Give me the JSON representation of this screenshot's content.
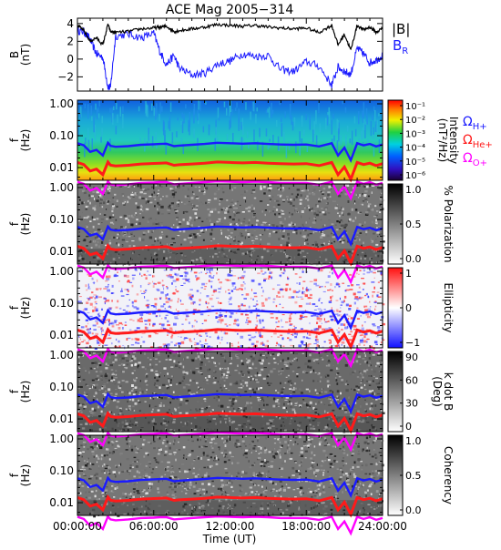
{
  "title": "ACE Mag 2005−314",
  "x_axis": {
    "label": "Time (UT)",
    "ticks": [
      "00:00:00",
      "06:00:00",
      "12:00:00",
      "18:00:00",
      "24:00:00"
    ],
    "range_hours": [
      0,
      24
    ]
  },
  "legend_top": {
    "B": "|B|",
    "BR": "B",
    "BR_sub": "R"
  },
  "legend_gyro": {
    "H": {
      "omega": "Ω",
      "sub": "H+",
      "color": "#1a1aff"
    },
    "He": {
      "omega": "Ω",
      "sub": "He+",
      "color": "#ff1a1a"
    },
    "O": {
      "omega": "Ω",
      "sub": "O+",
      "color": "#ff00ff"
    }
  },
  "panels": [
    {
      "id": "b",
      "ylabel": "B",
      "ylabel2": "(nT)",
      "yticks": [
        "4",
        "2",
        "0",
        "−2"
      ],
      "ylim": [
        -3.6,
        4.6
      ]
    },
    {
      "id": "intensity",
      "ylabel": "f",
      "ylabel2": "(Hz)",
      "yticks": [
        "1.00",
        "0.10",
        "0.01"
      ],
      "colorbar": {
        "label": "Intensity",
        "label2": "(nT²/Hz)",
        "ticks": [
          "10⁻¹",
          "10⁻²",
          "10⁻³",
          "10⁻⁴",
          "10⁻⁵",
          "10⁻⁶"
        ],
        "scheme": "rainbow"
      }
    },
    {
      "id": "polarization",
      "ylabel": "f",
      "ylabel2": "(Hz)",
      "yticks": [
        "1.00",
        "0.10",
        "0.01"
      ],
      "colorbar": {
        "label": "% Polarization",
        "label2": "",
        "ticks": [
          "1.0",
          "0.5",
          "0.0"
        ],
        "scheme": "gray"
      }
    },
    {
      "id": "ellipticity",
      "ylabel": "f",
      "ylabel2": "(Hz)",
      "yticks": [
        "1.00",
        "0.10",
        "0.01"
      ],
      "colorbar": {
        "label": "Ellipticity",
        "label2": "",
        "ticks": [
          "1",
          "0",
          "−1"
        ],
        "scheme": "bwr"
      }
    },
    {
      "id": "kdotb",
      "ylabel": "f",
      "ylabel2": "(Hz)",
      "yticks": [
        "1.00",
        "0.10",
        "0.01"
      ],
      "colorbar": {
        "label": "k dot B",
        "label2": "(Deg)",
        "ticks": [
          "90",
          "60",
          "30",
          "0"
        ],
        "scheme": "gray"
      }
    },
    {
      "id": "coherency",
      "ylabel": "f",
      "ylabel2": "(Hz)",
      "yticks": [
        "1.00",
        "0.10",
        "0.01"
      ],
      "colorbar": {
        "label": "Coherency",
        "label2": "",
        "ticks": [
          "1.0",
          "0.5",
          "0.0"
        ],
        "scheme": "gray"
      }
    }
  ],
  "chart_data": {
    "type": "line",
    "title": "ACE Mag 2005−314",
    "xlabel": "Time (UT)",
    "x_hours": [
      0,
      0.5,
      1,
      1.5,
      2,
      2.4,
      2.6,
      3,
      4,
      5,
      6,
      6.5,
      7,
      7.6,
      8,
      9,
      10,
      11,
      12,
      13,
      14,
      15,
      16,
      17,
      18,
      19,
      20,
      20.5,
      21,
      21.5,
      22,
      22.5,
      23,
      23.5,
      24
    ],
    "series": [
      {
        "name": "|B|",
        "color": "#000000",
        "ylim": [
          -3.6,
          4.6
        ],
        "values": [
          3.8,
          3.2,
          2.0,
          2.4,
          1.6,
          3.9,
          3.1,
          3.0,
          3.1,
          3.4,
          3.5,
          3.6,
          3.7,
          3.1,
          3.2,
          3.4,
          3.6,
          3.9,
          3.8,
          3.7,
          3.8,
          3.6,
          3.5,
          3.4,
          3.5,
          3.0,
          3.8,
          1.6,
          2.8,
          1.0,
          3.8,
          3.3,
          3.6,
          3.0,
          3.5
        ]
      },
      {
        "name": "B_R",
        "color": "#1a1aff",
        "ylim": [
          -3.6,
          4.6
        ],
        "values": [
          3.2,
          3.1,
          2.2,
          0.6,
          0.2,
          -3.1,
          -3.2,
          2.6,
          2.8,
          2.4,
          2.9,
          0.8,
          -0.6,
          0.4,
          -1.0,
          -1.8,
          -1.6,
          -0.6,
          -0.2,
          0.6,
          0.3,
          0.4,
          -1.2,
          -1.4,
          -0.3,
          -0.8,
          -2.9,
          -0.9,
          -1.4,
          -1.7,
          1.2,
          0.6,
          -0.4,
          -0.1,
          0.4
        ]
      },
      {
        "name": "ΩH+",
        "color": "#1a1aff",
        "unit": "Hz",
        "values": [
          0.058,
          0.05,
          0.031,
          0.036,
          0.024,
          0.06,
          0.048,
          0.045,
          0.047,
          0.052,
          0.054,
          0.055,
          0.056,
          0.047,
          0.049,
          0.052,
          0.055,
          0.06,
          0.058,
          0.056,
          0.058,
          0.055,
          0.053,
          0.052,
          0.053,
          0.046,
          0.058,
          0.024,
          0.042,
          0.017,
          0.058,
          0.05,
          0.055,
          0.046,
          0.053
        ]
      },
      {
        "name": "ΩHe+",
        "color": "#ff1a1a",
        "unit": "Hz",
        "values": [
          0.0145,
          0.0125,
          0.0078,
          0.009,
          0.006,
          0.015,
          0.012,
          0.0113,
          0.0118,
          0.013,
          0.0135,
          0.0138,
          0.014,
          0.0118,
          0.0123,
          0.013,
          0.0138,
          0.015,
          0.0145,
          0.014,
          0.0145,
          0.0138,
          0.0133,
          0.013,
          0.0133,
          0.0115,
          0.0145,
          0.006,
          0.0105,
          0.0043,
          0.0145,
          0.0125,
          0.0138,
          0.0115,
          0.0133
        ]
      },
      {
        "name": "ΩO+",
        "color": "#ff00ff",
        "unit": "Hz",
        "values": [
          0.0036,
          0.0031,
          0.0019,
          0.0023,
          0.0015,
          0.0037,
          0.003,
          0.0028,
          0.003,
          0.0033,
          0.0034,
          0.0035,
          0.0035,
          0.003,
          0.0031,
          0.0033,
          0.0035,
          0.0037,
          0.0036,
          0.0035,
          0.0036,
          0.0035,
          0.0033,
          0.0033,
          0.0033,
          0.0029,
          0.0036,
          0.0015,
          0.0026,
          0.0011,
          0.0036,
          0.0031,
          0.0035,
          0.0029,
          0.0033
        ]
      }
    ],
    "frequency_range_hz": [
      0.004,
      1.3
    ],
    "spectrograms": [
      "Intensity",
      "% Polarization",
      "Ellipticity",
      "k dot B",
      "Coherency"
    ]
  }
}
